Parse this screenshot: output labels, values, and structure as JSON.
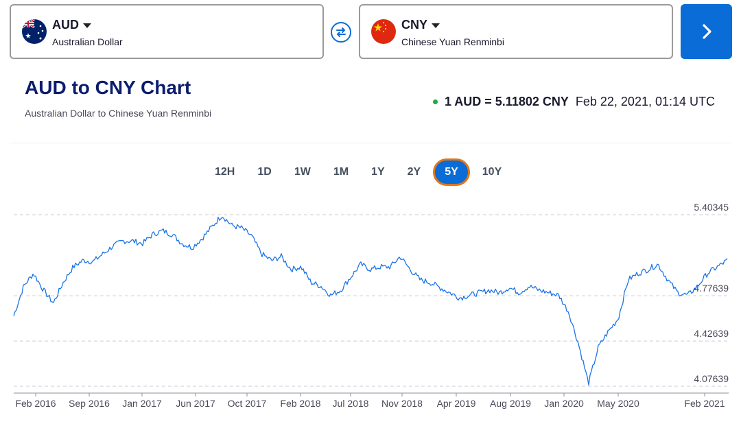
{
  "from": {
    "code": "AUD",
    "name": "Australian Dollar",
    "flag": "au-flag"
  },
  "to": {
    "code": "CNY",
    "name": "Chinese Yuan Renminbi",
    "flag": "cn-flag"
  },
  "header": {
    "title": "AUD to CNY Chart",
    "subtitle": "Australian Dollar to Chinese Yuan Renminbi",
    "rate": "1 AUD = 5.11802 CNY",
    "timestamp": "Feb 22, 2021, 01:14 UTC"
  },
  "ranges": [
    "12H",
    "1D",
    "1W",
    "1M",
    "1Y",
    "2Y",
    "5Y",
    "10Y"
  ],
  "active_range": "5Y",
  "colors": {
    "accent": "#0a6cd6",
    "line": "#1a73e8",
    "focus": "#e0761b",
    "live": "#22a845",
    "title": "#0b1c6e"
  },
  "chart_data": {
    "type": "line",
    "y_ticks": [
      "5.40345",
      "4.77639",
      "4.42639",
      "4.07639"
    ],
    "y_tick_values": [
      5.40345,
      4.77639,
      4.42639,
      4.07639
    ],
    "x_ticks": [
      "Feb 2016",
      "Sep 2016",
      "Jan 2017",
      "Jun 2017",
      "Oct 2017",
      "Feb 2018",
      "Jul 2018",
      "Nov 2018",
      "Apr 2019",
      "Aug 2019",
      "Jan 2020",
      "May 2020",
      "Feb 2021"
    ],
    "ylim": [
      4.07639,
      5.40345
    ],
    "grid": true,
    "series": [
      {
        "values": [
          4.62,
          4.85,
          4.95,
          4.82,
          4.72,
          4.88,
          5.0,
          5.05,
          5.04,
          5.1,
          5.16,
          5.2,
          5.2,
          5.18,
          5.25,
          5.28,
          5.25,
          5.18,
          5.15,
          5.22,
          5.31,
          5.4,
          5.32,
          5.3,
          5.24,
          5.1,
          5.05,
          5.08,
          4.98,
          5.0,
          4.88,
          4.85,
          4.78,
          4.82,
          4.92,
          5.02,
          4.98,
          5.0,
          5.0,
          5.08,
          4.98,
          4.9,
          4.88,
          4.84,
          4.8,
          4.76,
          4.78,
          4.8,
          4.82,
          4.8,
          4.84,
          4.8,
          4.85,
          4.82,
          4.8,
          4.78,
          4.65,
          4.4,
          4.1,
          4.38,
          4.5,
          4.6,
          4.9,
          4.95,
          4.98,
          5.02,
          4.9,
          4.8,
          4.78,
          4.85,
          4.95,
          5.0,
          5.05
        ]
      }
    ]
  }
}
